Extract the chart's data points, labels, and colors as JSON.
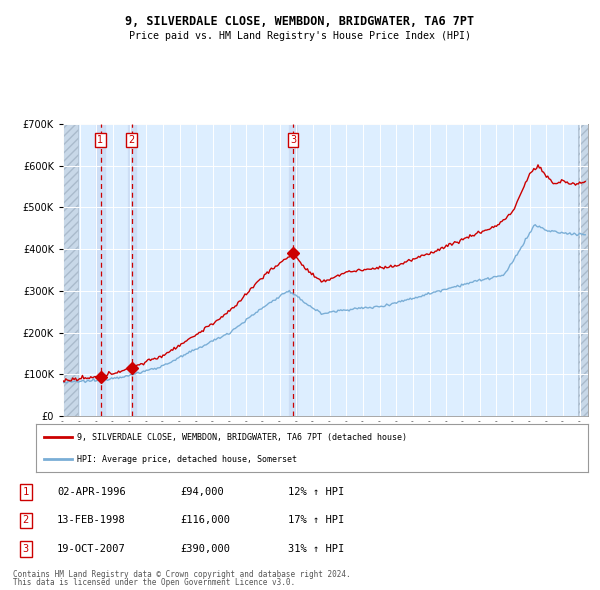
{
  "title1": "9, SILVERDALE CLOSE, WEMBDON, BRIDGWATER, TA6 7PT",
  "title2": "Price paid vs. HM Land Registry's House Price Index (HPI)",
  "sale_t": [
    1996.25,
    1998.12,
    2007.8
  ],
  "sale_prices": [
    94000,
    116000,
    390000
  ],
  "sale_labels": [
    "1",
    "2",
    "3"
  ],
  "legend_label_red": "9, SILVERDALE CLOSE, WEMBDON, BRIDGWATER, TA6 7PT (detached house)",
  "legend_label_blue": "HPI: Average price, detached house, Somerset",
  "table_data": [
    [
      "1",
      "02-APR-1996",
      "£94,000",
      "12% ↑ HPI"
    ],
    [
      "2",
      "13-FEB-1998",
      "£116,000",
      "17% ↑ HPI"
    ],
    [
      "3",
      "19-OCT-2007",
      "£390,000",
      "31% ↑ HPI"
    ]
  ],
  "footnote1": "Contains HM Land Registry data © Crown copyright and database right 2024.",
  "footnote2": "This data is licensed under the Open Government Licence v3.0.",
  "red_color": "#cc0000",
  "blue_color": "#7aaed6",
  "bg_color": "#ddeeff",
  "grid_color": "#ffffff",
  "ylim": [
    0,
    700000
  ],
  "yticks": [
    0,
    100000,
    200000,
    300000,
    400000,
    500000,
    600000,
    700000
  ],
  "xmin": 1994,
  "xmax": 2025.5
}
